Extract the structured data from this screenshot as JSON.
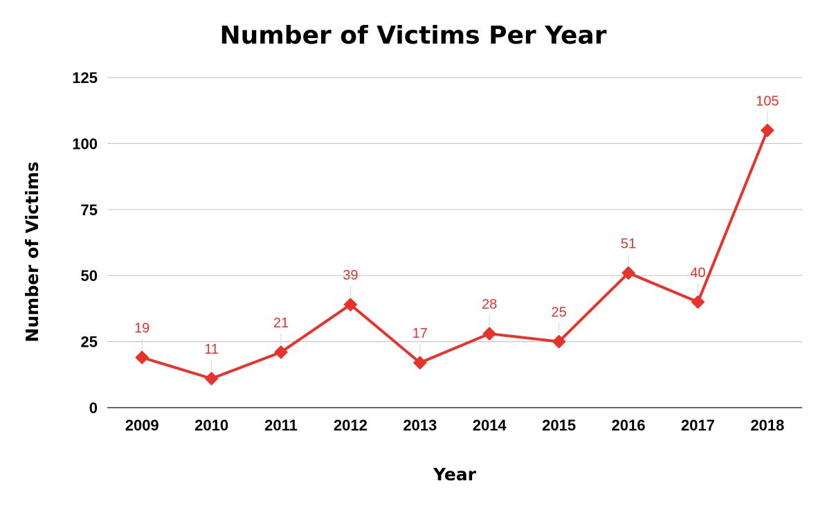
{
  "chart_data": {
    "type": "line",
    "title": "Number of Victims Per Year",
    "xlabel": "Year",
    "ylabel": "Number of Victims",
    "categories": [
      "2009",
      "2010",
      "2011",
      "2012",
      "2013",
      "2014",
      "2015",
      "2016",
      "2017",
      "2018"
    ],
    "series": [
      {
        "values": [
          19,
          11,
          21,
          39,
          17,
          28,
          25,
          51,
          40,
          105
        ]
      }
    ],
    "data_labels": [
      "19",
      "11",
      "21",
      "39",
      "17",
      "28",
      "25",
      "51",
      "40",
      "105"
    ],
    "y_ticks": [
      "0",
      "25",
      "50",
      "75",
      "100",
      "125"
    ],
    "ylim": [
      0,
      125
    ],
    "grid": true,
    "legend": "none",
    "marker": "diamond",
    "colors": {
      "series": "#e8322b",
      "grid": "#c8c8c8",
      "baseline": "#333333",
      "text": "#000000"
    }
  }
}
